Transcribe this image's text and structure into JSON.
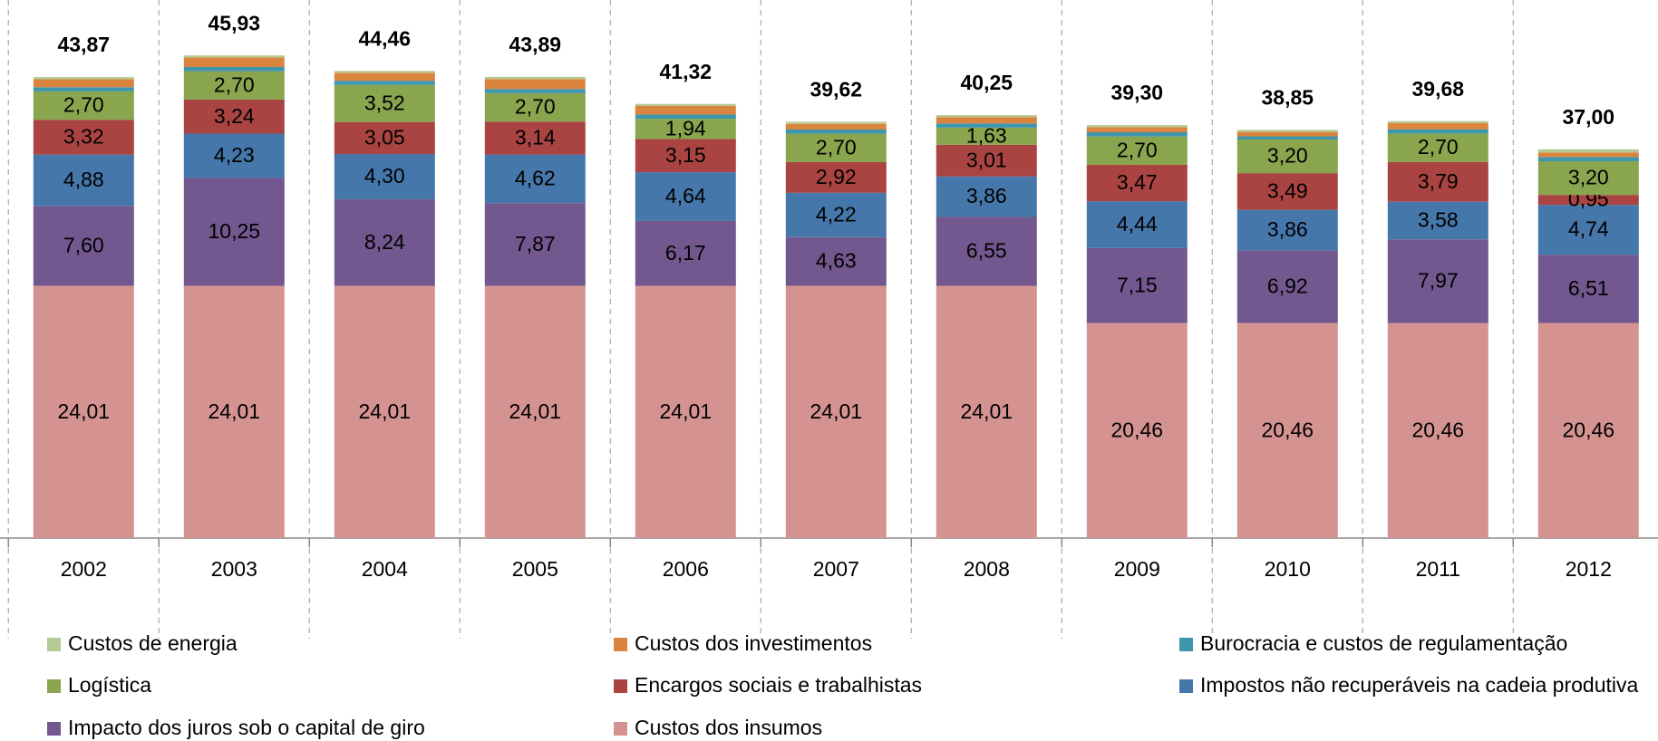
{
  "chart_data": {
    "type": "stacked_bar",
    "categories": [
      "2002",
      "2003",
      "2004",
      "2005",
      "2006",
      "2007",
      "2008",
      "2009",
      "2010",
      "2011",
      "2012"
    ],
    "series": [
      {
        "name": "Custos dos insumos",
        "color": "#d49391",
        "values": [
          24.01,
          24.01,
          24.01,
          24.01,
          24.01,
          24.01,
          24.01,
          20.46,
          20.46,
          20.46,
          20.46
        ],
        "value_labels": [
          "24,01",
          "24,01",
          "24,01",
          "24,01",
          "24,01",
          "24,01",
          "24,01",
          "20,46",
          "20,46",
          "20,46",
          "20,46"
        ]
      },
      {
        "name": "Impacto dos juros sob o capital de giro",
        "color": "#73588f",
        "values": [
          7.6,
          10.25,
          8.24,
          7.87,
          6.17,
          4.63,
          6.55,
          7.15,
          6.92,
          7.97,
          6.51
        ],
        "value_labels": [
          "7,60",
          "10,25",
          "8,24",
          "7,87",
          "6,17",
          "4,63",
          "6,55",
          "7,15",
          "6,92",
          "7,97",
          "6,51"
        ]
      },
      {
        "name": "Impostos não recuperáveis na cadeia produtiva",
        "color": "#4677aa",
        "values": [
          4.88,
          4.23,
          4.3,
          4.62,
          4.64,
          4.22,
          3.86,
          4.44,
          3.86,
          3.58,
          4.74
        ],
        "value_labels": [
          "4,88",
          "4,23",
          "4,30",
          "4,62",
          "4,64",
          "4,22",
          "3,86",
          "4,44",
          "3,86",
          "3,58",
          "4,74"
        ]
      },
      {
        "name": "Encargos sociais e trabalhistas",
        "color": "#aa4443",
        "values": [
          3.32,
          3.24,
          3.05,
          3.14,
          3.15,
          2.92,
          3.01,
          3.47,
          3.49,
          3.79,
          0.95
        ],
        "value_labels": [
          "3,32",
          "3,24",
          "3,05",
          "3,14",
          "3,15",
          "2,92",
          "3,01",
          "3,47",
          "3,49",
          "3,79",
          "0,95"
        ]
      },
      {
        "name": "Logística",
        "color": "#89a54e",
        "values": [
          2.7,
          2.7,
          3.52,
          2.7,
          1.94,
          2.7,
          1.63,
          2.7,
          3.2,
          2.7,
          3.2
        ],
        "value_labels": [
          "2,70",
          "2,70",
          "3,52",
          "2,70",
          "1,94",
          "2,70",
          "1,63",
          "2,70",
          "3,20",
          "2,70",
          "3,20"
        ]
      },
      {
        "name": "Burocracia e custos de regulamentação",
        "color": "#3e96ad",
        "values": [
          0.4,
          0.4,
          0.4,
          0.4,
          0.4,
          0.4,
          0.4,
          0.4,
          0.3,
          0.4,
          0.4
        ]
      },
      {
        "name": "Custos dos investimentos",
        "color": "#db843d",
        "values": [
          0.76,
          0.9,
          0.74,
          0.95,
          0.81,
          0.54,
          0.59,
          0.48,
          0.42,
          0.58,
          0.44
        ]
      },
      {
        "name": "Custos de energia",
        "color": "#b5ca92",
        "values": [
          0.2,
          0.2,
          0.2,
          0.2,
          0.2,
          0.2,
          0.2,
          0.2,
          0.2,
          0.2,
          0.3
        ]
      }
    ],
    "totals": [
      43.87,
      45.93,
      44.46,
      43.89,
      41.32,
      39.62,
      40.25,
      39.3,
      38.85,
      39.68,
      37.0
    ],
    "total_labels": [
      "43,87",
      "45,93",
      "44,46",
      "43,89",
      "41,32",
      "39,62",
      "40,25",
      "39,30",
      "38,85",
      "39,68",
      "37,00"
    ],
    "ylim": [
      0,
      50
    ]
  }
}
